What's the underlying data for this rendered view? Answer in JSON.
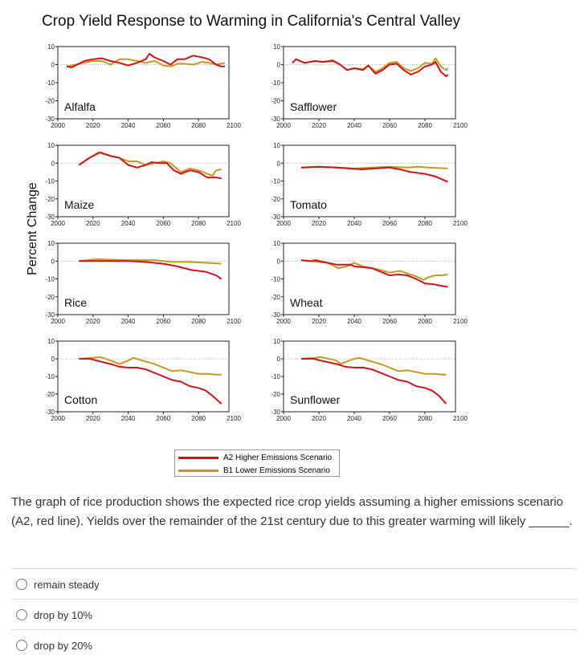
{
  "chart_data": {
    "type": "line",
    "title": "Crop Yield Response to Warming in California's Central Valley",
    "ylabel": "Percent Change",
    "ylim": [
      -30,
      10
    ],
    "yticks": [
      10,
      0,
      -10,
      -20,
      -30
    ],
    "xlim": [
      2000,
      2100
    ],
    "xticks": [
      2000,
      2020,
      2040,
      2060,
      2080,
      2100
    ],
    "colors": {
      "A2": "#d0121b",
      "B1": "#c49a1e"
    },
    "legend": [
      "A2 Higher Emissions Scenario",
      "B1 Lower Emissions Scenario"
    ],
    "panels": [
      {
        "name": "Alfalfa",
        "A2": [
          [
            2005,
            -1
          ],
          [
            2008,
            -1.5
          ],
          [
            2015,
            2
          ],
          [
            2020,
            3
          ],
          [
            2025,
            3.5
          ],
          [
            2030,
            2
          ],
          [
            2035,
            1
          ],
          [
            2040,
            -0.5
          ],
          [
            2045,
            1
          ],
          [
            2050,
            3
          ],
          [
            2052,
            6
          ],
          [
            2055,
            4
          ],
          [
            2060,
            2
          ],
          [
            2064,
            0
          ],
          [
            2068,
            3
          ],
          [
            2072,
            3
          ],
          [
            2077,
            5
          ],
          [
            2082,
            4
          ],
          [
            2086,
            3
          ],
          [
            2090,
            0
          ],
          [
            2093,
            -1
          ],
          [
            2095,
            -1
          ]
        ],
        "B1": [
          [
            2005,
            -1
          ],
          [
            2010,
            0
          ],
          [
            2015,
            1
          ],
          [
            2020,
            2
          ],
          [
            2025,
            2
          ],
          [
            2030,
            0
          ],
          [
            2035,
            3
          ],
          [
            2040,
            3
          ],
          [
            2045,
            2
          ],
          [
            2050,
            1
          ],
          [
            2055,
            2
          ],
          [
            2060,
            -0.5
          ],
          [
            2064,
            -1
          ],
          [
            2068,
            0.5
          ],
          [
            2072,
            0.5
          ],
          [
            2077,
            0
          ],
          [
            2082,
            1.5
          ],
          [
            2086,
            1
          ],
          [
            2090,
            0
          ],
          [
            2095,
            1
          ]
        ]
      },
      {
        "name": "Safflower",
        "A2": [
          [
            2005,
            1
          ],
          [
            2007,
            3
          ],
          [
            2012,
            1
          ],
          [
            2018,
            2
          ],
          [
            2022,
            1.5
          ],
          [
            2028,
            2
          ],
          [
            2032,
            0
          ],
          [
            2036,
            -3
          ],
          [
            2040,
            -2
          ],
          [
            2045,
            -3
          ],
          [
            2048,
            -0.5
          ],
          [
            2052,
            -5
          ],
          [
            2056,
            -3
          ],
          [
            2060,
            0
          ],
          [
            2064,
            0.5
          ],
          [
            2068,
            -3
          ],
          [
            2072,
            -5.5
          ],
          [
            2076,
            -4
          ],
          [
            2080,
            -1
          ],
          [
            2084,
            0
          ],
          [
            2086,
            1.5
          ],
          [
            2089,
            -4
          ],
          [
            2092,
            -6.5
          ],
          [
            2093,
            -5.5
          ]
        ],
        "B1": [
          [
            2005,
            1
          ],
          [
            2007,
            3
          ],
          [
            2012,
            1
          ],
          [
            2018,
            2
          ],
          [
            2022,
            1.5
          ],
          [
            2028,
            2.5
          ],
          [
            2032,
            0
          ],
          [
            2036,
            -3
          ],
          [
            2040,
            -2
          ],
          [
            2045,
            -2.5
          ],
          [
            2048,
            -0.5
          ],
          [
            2052,
            -4
          ],
          [
            2056,
            -2
          ],
          [
            2060,
            1
          ],
          [
            2064,
            1.5
          ],
          [
            2068,
            -2
          ],
          [
            2072,
            -3.5
          ],
          [
            2076,
            -2
          ],
          [
            2080,
            1
          ],
          [
            2084,
            0.5
          ],
          [
            2086,
            3.5
          ],
          [
            2089,
            -1
          ],
          [
            2092,
            -3
          ],
          [
            2093,
            -2
          ]
        ]
      },
      {
        "name": "Maize",
        "A2": [
          [
            2012,
            -1
          ],
          [
            2018,
            3
          ],
          [
            2024,
            6
          ],
          [
            2030,
            4
          ],
          [
            2035,
            3
          ],
          [
            2040,
            -1
          ],
          [
            2045,
            -2.5
          ],
          [
            2050,
            -1
          ],
          [
            2053,
            0.5
          ],
          [
            2058,
            0
          ],
          [
            2062,
            0
          ],
          [
            2066,
            -4
          ],
          [
            2070,
            -6
          ],
          [
            2075,
            -4
          ],
          [
            2080,
            -5
          ],
          [
            2085,
            -8
          ],
          [
            2090,
            -8
          ],
          [
            2093,
            -8.5
          ]
        ],
        "B1": [
          [
            2012,
            -1
          ],
          [
            2018,
            3
          ],
          [
            2023,
            6
          ],
          [
            2030,
            4
          ],
          [
            2035,
            3
          ],
          [
            2040,
            1
          ],
          [
            2045,
            1
          ],
          [
            2050,
            -1
          ],
          [
            2055,
            0
          ],
          [
            2060,
            1
          ],
          [
            2064,
            0
          ],
          [
            2070,
            -5
          ],
          [
            2075,
            -3
          ],
          [
            2080,
            -4
          ],
          [
            2085,
            -6
          ],
          [
            2088,
            -7
          ],
          [
            2090,
            -4
          ],
          [
            2093,
            -3.5
          ]
        ]
      },
      {
        "name": "Tomato",
        "A2": [
          [
            2010,
            -2.5
          ],
          [
            2020,
            -2
          ],
          [
            2030,
            -2.5
          ],
          [
            2044,
            -3.5
          ],
          [
            2052,
            -3
          ],
          [
            2060,
            -2.5
          ],
          [
            2066,
            -3.5
          ],
          [
            2072,
            -5
          ],
          [
            2080,
            -6
          ],
          [
            2086,
            -7.5
          ],
          [
            2093,
            -10.5
          ]
        ],
        "B1": [
          [
            2010,
            -2.5
          ],
          [
            2020,
            -2
          ],
          [
            2040,
            -3
          ],
          [
            2050,
            -2.5
          ],
          [
            2060,
            -2
          ],
          [
            2070,
            -2.5
          ],
          [
            2076,
            -2
          ],
          [
            2082,
            -2.5
          ],
          [
            2093,
            -3
          ]
        ]
      },
      {
        "name": "Rice",
        "A2": [
          [
            2012,
            0
          ],
          [
            2025,
            0
          ],
          [
            2040,
            0
          ],
          [
            2050,
            -0.5
          ],
          [
            2060,
            -1.5
          ],
          [
            2068,
            -3
          ],
          [
            2076,
            -5
          ],
          [
            2084,
            -6
          ],
          [
            2090,
            -8
          ],
          [
            2093,
            -10
          ]
        ],
        "B1": [
          [
            2012,
            0
          ],
          [
            2022,
            1
          ],
          [
            2040,
            0.5
          ],
          [
            2055,
            0.5
          ],
          [
            2065,
            -0.5
          ],
          [
            2075,
            -0.5
          ],
          [
            2085,
            -1
          ],
          [
            2093,
            -1.5
          ]
        ]
      },
      {
        "name": "Wheat",
        "A2": [
          [
            2010,
            0.5
          ],
          [
            2015,
            0
          ],
          [
            2018,
            0.5
          ],
          [
            2025,
            -1
          ],
          [
            2030,
            -2
          ],
          [
            2038,
            -2
          ],
          [
            2040,
            -3
          ],
          [
            2045,
            -3.5
          ],
          [
            2050,
            -4
          ],
          [
            2055,
            -6
          ],
          [
            2060,
            -8
          ],
          [
            2065,
            -7.5
          ],
          [
            2070,
            -8
          ],
          [
            2075,
            -10
          ],
          [
            2080,
            -12.5
          ],
          [
            2085,
            -13
          ],
          [
            2090,
            -14
          ],
          [
            2093,
            -14.5
          ]
        ],
        "B1": [
          [
            2010,
            0.5
          ],
          [
            2020,
            -0.5
          ],
          [
            2025,
            -1
          ],
          [
            2031,
            -4
          ],
          [
            2036,
            -3
          ],
          [
            2040,
            -1
          ],
          [
            2045,
            -3
          ],
          [
            2050,
            -4
          ],
          [
            2055,
            -5
          ],
          [
            2060,
            -6.5
          ],
          [
            2066,
            -5.5
          ],
          [
            2070,
            -7
          ],
          [
            2075,
            -8.5
          ],
          [
            2079,
            -10.5
          ],
          [
            2082,
            -9
          ],
          [
            2086,
            -8
          ],
          [
            2090,
            -8
          ],
          [
            2093,
            -7.5
          ]
        ]
      },
      {
        "name": "Cotton",
        "A2": [
          [
            2012,
            0
          ],
          [
            2018,
            0
          ],
          [
            2022,
            -1
          ],
          [
            2030,
            -3
          ],
          [
            2035,
            -4.5
          ],
          [
            2040,
            -5
          ],
          [
            2045,
            -5
          ],
          [
            2050,
            -6
          ],
          [
            2055,
            -8
          ],
          [
            2060,
            -10
          ],
          [
            2065,
            -12
          ],
          [
            2070,
            -13
          ],
          [
            2075,
            -15.5
          ],
          [
            2080,
            -16.5
          ],
          [
            2084,
            -18
          ],
          [
            2088,
            -21
          ],
          [
            2093,
            -25.5
          ]
        ],
        "B1": [
          [
            2012,
            0
          ],
          [
            2020,
            0.5
          ],
          [
            2024,
            1
          ],
          [
            2030,
            -1
          ],
          [
            2035,
            -3
          ],
          [
            2040,
            -1
          ],
          [
            2043,
            0.5
          ],
          [
            2048,
            -1
          ],
          [
            2055,
            -3
          ],
          [
            2060,
            -5
          ],
          [
            2065,
            -7
          ],
          [
            2070,
            -6.5
          ],
          [
            2075,
            -7.5
          ],
          [
            2080,
            -8.5
          ],
          [
            2085,
            -8.5
          ],
          [
            2090,
            -9
          ],
          [
            2093,
            -9
          ]
        ]
      },
      {
        "name": "Sunflower",
        "A2": [
          [
            2010,
            0
          ],
          [
            2017,
            0
          ],
          [
            2021,
            -1
          ],
          [
            2030,
            -3
          ],
          [
            2035,
            -4.5
          ],
          [
            2040,
            -5
          ],
          [
            2045,
            -5
          ],
          [
            2050,
            -6
          ],
          [
            2055,
            -8
          ],
          [
            2060,
            -10
          ],
          [
            2065,
            -12
          ],
          [
            2070,
            -13
          ],
          [
            2075,
            -15.5
          ],
          [
            2080,
            -16.5
          ],
          [
            2084,
            -18
          ],
          [
            2088,
            -21
          ],
          [
            2092,
            -25.5
          ]
        ],
        "B1": [
          [
            2010,
            0
          ],
          [
            2018,
            0.5
          ],
          [
            2021,
            1
          ],
          [
            2030,
            -1
          ],
          [
            2032,
            -3
          ],
          [
            2040,
            0
          ],
          [
            2043,
            0.5
          ],
          [
            2048,
            -1
          ],
          [
            2055,
            -3
          ],
          [
            2060,
            -5
          ],
          [
            2065,
            -7
          ],
          [
            2070,
            -6.5
          ],
          [
            2075,
            -7.5
          ],
          [
            2080,
            -8.5
          ],
          [
            2085,
            -8.5
          ],
          [
            2090,
            -9
          ],
          [
            2092,
            -9
          ]
        ]
      }
    ]
  },
  "question": {
    "text": "The graph of rice production shows the expected rice crop yields assuming a higher emissions scenario (A2, red line). Yields over the remainder of the 21st century due to this greater warming will likely ______.",
    "options": [
      "remain steady",
      "drop by 10%",
      "drop by 20%"
    ]
  }
}
